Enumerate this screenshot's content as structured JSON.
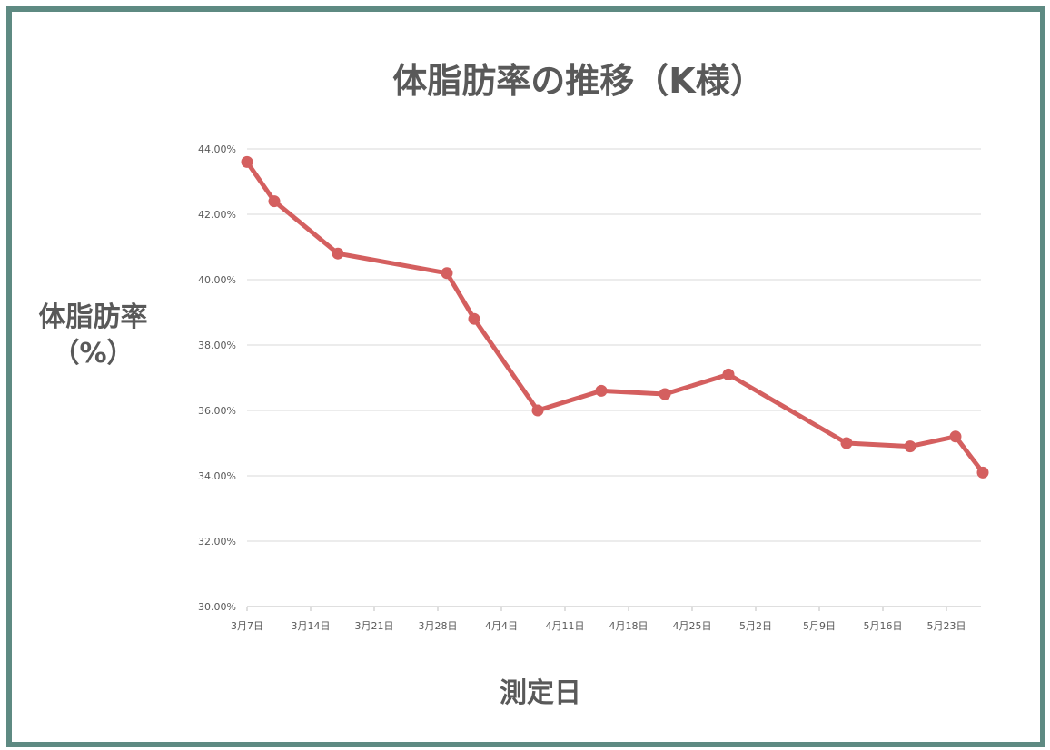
{
  "chart_data": {
    "type": "line",
    "title": "体脂肪率の推移（K様）",
    "ylabel_line1": "体脂肪率",
    "ylabel_line2": "（%）",
    "xlabel": "測定日",
    "x_ticks": [
      "3月7日",
      "3月14日",
      "3月21日",
      "3月28日",
      "4月4日",
      "4月11日",
      "4月18日",
      "4月25日",
      "5月2日",
      "5月9日",
      "5月16日",
      "5月23日"
    ],
    "y_ticks": [
      "30.00%",
      "32.00%",
      "34.00%",
      "36.00%",
      "38.00%",
      "40.00%",
      "42.00%",
      "44.00%"
    ],
    "ylim": [
      30,
      44
    ],
    "xlim": [
      "3月7日",
      "5月28日"
    ],
    "grid": true,
    "series": [
      {
        "color": "#d45f5f",
        "points": [
          {
            "x": "3月7日",
            "y": 43.6
          },
          {
            "x": "3月10日",
            "y": 42.4
          },
          {
            "x": "3月17日",
            "y": 40.8
          },
          {
            "x": "3月29日",
            "y": 40.2
          },
          {
            "x": "4月1日",
            "y": 38.8
          },
          {
            "x": "4月8日",
            "y": 36.0
          },
          {
            "x": "4月15日",
            "y": 36.6
          },
          {
            "x": "4月22日",
            "y": 36.5
          },
          {
            "x": "4月29日",
            "y": 37.1
          },
          {
            "x": "5月12日",
            "y": 35.0
          },
          {
            "x": "5月19日",
            "y": 34.9
          },
          {
            "x": "5月24日",
            "y": 35.2
          },
          {
            "x": "5月27日",
            "y": 34.1
          }
        ]
      }
    ]
  }
}
